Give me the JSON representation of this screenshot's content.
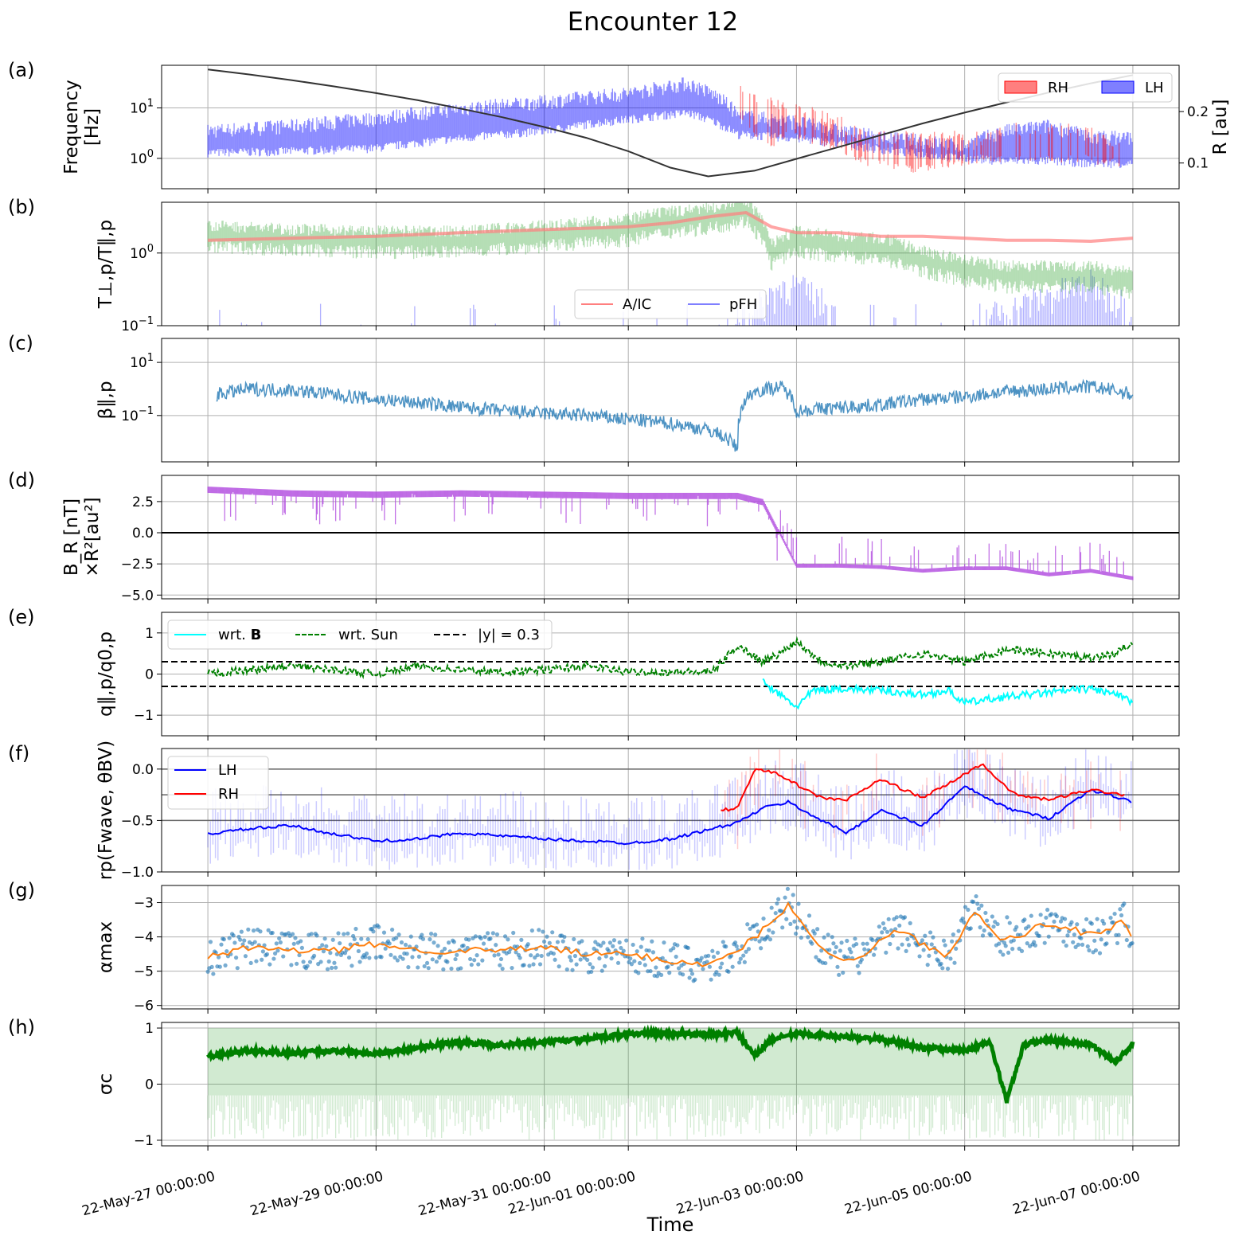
{
  "title": "Encounter 12",
  "x_axis": {
    "label": "Time",
    "tick_labels": [
      "22-May-27 00:00:00",
      "22-May-29 00:00:00",
      "22-May-31 00:00:00",
      "22-Jun-01 00:00:00",
      "22-Jun-03 00:00:00",
      "22-Jun-05 00:00:00",
      "22-Jun-07 00:00:00"
    ],
    "tick_days": [
      0,
      2,
      4,
      5,
      7,
      9,
      11
    ],
    "range_days": [
      -0.55,
      11.55
    ]
  },
  "colors": {
    "rh": "#ff0000",
    "lh": "#0000ff",
    "aic": "#ff7f7f",
    "pfh": "#7f7fff",
    "beta": "#1f77b4",
    "br": "#b34fe0",
    "cyan": "#00ffff",
    "green": "#008000",
    "orange": "#ff7f0e"
  },
  "panels": [
    {
      "letter": "(a)",
      "ylabel": [
        "Frequency",
        "[Hz]"
      ],
      "yscale": "log",
      "ylim": [
        0.25,
        70
      ],
      "yticks": [
        {
          "v": 1,
          "label": "10^0"
        },
        {
          "v": 10,
          "label": "10^1"
        }
      ],
      "right_ylabel": "R [au]",
      "right_ylim": [
        0.05,
        0.29
      ],
      "right_yticks": [
        {
          "v": 0.1,
          "label": "0.1"
        },
        {
          "v": 0.2,
          "label": "0.2"
        }
      ],
      "legend": [
        "RH",
        "LH"
      ]
    },
    {
      "letter": "(b)",
      "ylabel": [
        "T⊥,p/T∥,p"
      ],
      "yscale": "log",
      "ylim": [
        0.1,
        5
      ],
      "yticks": [
        {
          "v": 0.1,
          "label": "10^-1"
        },
        {
          "v": 1,
          "label": "10^0"
        }
      ],
      "legend": [
        "A/IC",
        "pFH"
      ]
    },
    {
      "letter": "(c)",
      "ylabel": [
        "β∥,p"
      ],
      "yscale": "log",
      "ylim": [
        0.0018,
        80
      ],
      "yticks": [
        {
          "v": 0.1,
          "label": "10^-1"
        },
        {
          "v": 10,
          "label": "10^1"
        }
      ]
    },
    {
      "letter": "(d)",
      "ylabel": [
        "B_R [nT]",
        "×R²[au²]"
      ],
      "yscale": "linear",
      "ylim": [
        -5.3,
        4.6
      ],
      "yticks": [
        {
          "v": 2.5,
          "label": "2.5"
        },
        {
          "v": 0,
          "label": "0.0"
        },
        {
          "v": -2.5,
          "label": "−2.5"
        },
        {
          "v": -5,
          "label": "−5.0"
        }
      ]
    },
    {
      "letter": "(e)",
      "ylabel": [
        "q∥,p/q0,p"
      ],
      "yscale": "linear",
      "ylim": [
        -1.5,
        1.5
      ],
      "yticks": [
        {
          "v": 1,
          "label": "1"
        },
        {
          "v": 0,
          "label": "0"
        },
        {
          "v": -1,
          "label": "−1"
        }
      ],
      "legend": [
        "wrt. B",
        "wrt. Sun",
        "|y| = 0.3"
      ]
    },
    {
      "letter": "(f)",
      "ylabel": [
        "rp(Fwave, θBV)"
      ],
      "yscale": "linear",
      "ylim": [
        -1.0,
        0.2
      ],
      "yticks": [
        {
          "v": 0,
          "label": "0.0"
        },
        {
          "v": -0.5,
          "label": "−0.5"
        },
        {
          "v": -1,
          "label": "−1.0"
        }
      ],
      "legend": [
        "LH",
        "RH"
      ]
    },
    {
      "letter": "(g)",
      "ylabel": [
        "αmax"
      ],
      "yscale": "linear",
      "ylim": [
        -6.1,
        -2.5
      ],
      "yticks": [
        {
          "v": -3,
          "label": "−3"
        },
        {
          "v": -4,
          "label": "−4"
        },
        {
          "v": -5,
          "label": "−5"
        },
        {
          "v": -6,
          "label": "−6"
        }
      ]
    },
    {
      "letter": "(h)",
      "ylabel": [
        "σc"
      ],
      "yscale": "linear",
      "ylim": [
        -1.1,
        1.1
      ],
      "yticks": [
        {
          "v": 1,
          "label": "1"
        },
        {
          "v": 0,
          "label": "0"
        },
        {
          "v": -1,
          "label": "−1"
        }
      ]
    }
  ],
  "chart_data": [
    {
      "type": "line",
      "panel": "(a)",
      "series": [
        {
          "name": "R [au]",
          "axis": "right",
          "x": [
            0,
            0.5,
            1,
            1.5,
            2,
            2.5,
            3,
            3.5,
            4,
            4.5,
            5,
            5.5,
            5.95,
            6.5,
            7,
            7.5,
            8,
            8.5,
            9,
            9.5,
            10,
            10.5,
            11
          ],
          "y": [
            0.282,
            0.272,
            0.261,
            0.249,
            0.236,
            0.222,
            0.206,
            0.189,
            0.17,
            0.149,
            0.123,
            0.091,
            0.074,
            0.085,
            0.108,
            0.131,
            0.154,
            0.177,
            0.198,
            0.218,
            0.237,
            0.255,
            0.271
          ]
        },
        {
          "name": "LH",
          "kind": "band",
          "x": [
            0,
            1,
            2,
            3,
            4,
            5,
            5.7,
            6.3,
            7,
            7.5,
            8,
            8.5,
            9,
            9.5,
            10,
            10.5,
            11
          ],
          "low": [
            1.3,
            1.4,
            1.6,
            2.5,
            3.5,
            6,
            8,
            3,
            2.5,
            2,
            1.5,
            1.2,
            1.0,
            0.9,
            0.9,
            0.8,
            0.8
          ],
          "high": [
            4,
            5,
            7,
            11,
            15,
            22,
            35,
            8,
            6,
            4,
            3,
            2.5,
            2,
            4,
            5,
            3,
            3
          ]
        },
        {
          "name": "RH",
          "kind": "band",
          "x": [
            6.3,
            6.6,
            6.9,
            7.8,
            8.4,
            9.2,
            9.8,
            10.4,
            10.9
          ],
          "low": [
            6,
            1.5,
            3,
            0.9,
            0.6,
            1.0,
            0.9,
            1.0,
            0.8
          ],
          "high": [
            25,
            15,
            12,
            3,
            3,
            3,
            5,
            4,
            2
          ]
        }
      ]
    },
    {
      "type": "line",
      "panel": "(b)",
      "series": [
        {
          "name": "A/IC",
          "x": [
            0,
            1,
            2,
            3,
            4,
            5,
            5.5,
            6,
            6.4,
            6.7,
            7,
            7.5,
            8,
            8.5,
            9,
            9.5,
            10,
            10.5,
            11
          ],
          "y": [
            1.5,
            1.6,
            1.7,
            1.9,
            2.1,
            2.3,
            2.6,
            3.2,
            3.6,
            2.3,
            1.9,
            1.9,
            1.7,
            1.7,
            1.6,
            1.5,
            1.5,
            1.45,
            1.6
          ]
        },
        {
          "name": "pFH",
          "x": [
            0,
            1,
            2,
            3,
            4,
            5,
            6,
            6.5,
            6.9,
            7.5,
            8,
            8.5,
            9,
            9.5,
            10,
            10.5,
            11
          ],
          "y": [
            0.1,
            0.1,
            0.1,
            0.1,
            0.1,
            0.1,
            0.1,
            0.12,
            0.3,
            0.1,
            0.1,
            0.1,
            0.1,
            0.12,
            0.2,
            0.3,
            0.12
          ]
        },
        {
          "name": "",
          "x": [
            0,
            1,
            2,
            3,
            4,
            5,
            5.5,
            6,
            6.4,
            6.7,
            7,
            7.5,
            8,
            8.5,
            9,
            9.5,
            10,
            10.5,
            11
          ],
          "y": [
            1.8,
            1.6,
            1.5,
            1.5,
            1.8,
            2.2,
            2.8,
            3.2,
            4,
            1.0,
            1.5,
            1.3,
            1.2,
            0.8,
            0.6,
            0.5,
            0.5,
            0.5,
            0.4
          ]
        }
      ]
    },
    {
      "type": "line",
      "panel": "(c)",
      "series": [
        {
          "name": "",
          "x": [
            0.1,
            0.5,
            1,
            1.5,
            2,
            2.5,
            3,
            3.5,
            4,
            4.5,
            5,
            5.5,
            6,
            6.3,
            6.5,
            6.8,
            7,
            7.5,
            8,
            8.5,
            9,
            9.5,
            10,
            10.5,
            11
          ],
          "y": [
            0.6,
            1.0,
            0.9,
            0.6,
            0.4,
            0.3,
            0.2,
            0.15,
            0.12,
            0.1,
            0.07,
            0.05,
            0.025,
            0.005,
            0.8,
            1.2,
            0.15,
            0.2,
            0.25,
            0.4,
            0.5,
            0.8,
            1.0,
            1.2,
            0.6
          ]
        }
      ]
    },
    {
      "type": "line",
      "panel": "(d)",
      "series": [
        {
          "name": "",
          "x": [
            0,
            1,
            2,
            3,
            4,
            5,
            6,
            6.3,
            6.6,
            7,
            7.5,
            8,
            8.5,
            9,
            9.5,
            10,
            10.5,
            11
          ],
          "y": [
            3.5,
            3.2,
            3.1,
            3.2,
            3.1,
            3.0,
            3.0,
            3.0,
            2.5,
            -2.8,
            -2.8,
            -2.9,
            -3.2,
            -3.0,
            -3.0,
            -3.5,
            -3.2,
            -3.8
          ]
        }
      ]
    },
    {
      "type": "line",
      "panel": "(e)",
      "series": [
        {
          "name": "wrt. B",
          "x": [
            6.6,
            6.8,
            7,
            7.2,
            7.5,
            8,
            8.5,
            8.8,
            9,
            9.5,
            10,
            10.5,
            10.8,
            11
          ],
          "y": [
            -0.2,
            -0.5,
            -0.8,
            -0.4,
            -0.35,
            -0.4,
            -0.5,
            -0.4,
            -0.7,
            -0.55,
            -0.45,
            -0.35,
            -0.5,
            -0.7
          ]
        },
        {
          "name": "wrt. Sun",
          "x": [
            0,
            0.5,
            1,
            1.5,
            2,
            2.5,
            3,
            3.5,
            4,
            4.5,
            5,
            5.5,
            6,
            6.3,
            6.6,
            6.8,
            7,
            7.3,
            7.6,
            8,
            8.5,
            9,
            9.5,
            10,
            10.5,
            10.8,
            11
          ],
          "y": [
            0,
            0.1,
            0.2,
            0.1,
            0,
            0.2,
            0.1,
            0.05,
            0.1,
            0.2,
            0.05,
            0.05,
            0.05,
            0.7,
            0.3,
            0.5,
            0.8,
            0.3,
            0.2,
            0.3,
            0.5,
            0.3,
            0.6,
            0.5,
            0.4,
            0.5,
            0.8
          ]
        },
        {
          "name": "|y| = 0.3",
          "x": [
            -0.55,
            11.55
          ],
          "y": [
            0.3,
            0.3
          ]
        },
        {
          "name": "",
          "x": [
            -0.55,
            11.55
          ],
          "y": [
            -0.3,
            -0.3
          ]
        }
      ]
    },
    {
      "type": "line",
      "panel": "(f)",
      "series": [
        {
          "name": "LH",
          "x": [
            0,
            0.5,
            1,
            1.5,
            2,
            2.5,
            3,
            3.5,
            4,
            4.5,
            5,
            5.5,
            6,
            6.3,
            6.6,
            6.9,
            7.3,
            7.6,
            8,
            8.5,
            9,
            9.5,
            10,
            10.5,
            11
          ],
          "y": [
            -0.63,
            -0.58,
            -0.55,
            -0.63,
            -0.7,
            -0.68,
            -0.62,
            -0.65,
            -0.68,
            -0.7,
            -0.72,
            -0.68,
            -0.58,
            -0.52,
            -0.38,
            -0.32,
            -0.5,
            -0.62,
            -0.4,
            -0.55,
            -0.17,
            -0.38,
            -0.48,
            -0.2,
            -0.32
          ]
        },
        {
          "name": "RH",
          "x": [
            6.1,
            6.3,
            6.5,
            6.8,
            7.1,
            7.3,
            7.6,
            8,
            8.5,
            8.9,
            9.2,
            9.6,
            10,
            10.5,
            10.9
          ],
          "y": [
            -0.4,
            -0.38,
            0.0,
            -0.05,
            -0.2,
            -0.28,
            -0.3,
            -0.1,
            -0.28,
            -0.1,
            0.05,
            -0.25,
            -0.3,
            -0.2,
            -0.25
          ]
        },
        {
          "name": "",
          "x": [
            -0.55,
            11.55
          ],
          "y": [
            0,
            0
          ]
        },
        {
          "name": "",
          "x": [
            -0.55,
            11.55
          ],
          "y": [
            -0.25,
            -0.25
          ]
        },
        {
          "name": "",
          "x": [
            -0.55,
            11.55
          ],
          "y": [
            -0.5,
            -0.5
          ]
        }
      ]
    },
    {
      "type": "scatter",
      "panel": "(g)",
      "series": [
        {
          "name": "",
          "x": [
            0,
            0.5,
            1,
            1.5,
            2,
            2.5,
            3,
            3.5,
            4,
            4.5,
            5,
            5.5,
            6,
            6.3,
            6.6,
            6.9,
            7.2,
            7.5,
            7.8,
            8.2,
            8.5,
            8.8,
            9.1,
            9.4,
            9.7,
            10,
            10.3,
            10.6,
            10.9,
            11
          ],
          "y": [
            -4.6,
            -4.3,
            -4.4,
            -4.4,
            -4.2,
            -4.4,
            -4.4,
            -4.4,
            -4.3,
            -4.5,
            -4.5,
            -4.7,
            -4.8,
            -4.4,
            -3.8,
            -3.1,
            -4.0,
            -4.7,
            -4.5,
            -3.8,
            -4.2,
            -4.6,
            -3.2,
            -4.0,
            -3.9,
            -3.6,
            -3.8,
            -4.0,
            -3.5,
            -4.2
          ]
        }
      ]
    },
    {
      "type": "line",
      "panel": "(h)",
      "series": [
        {
          "name": "",
          "x": [
            0,
            0.5,
            1,
            1.5,
            2,
            2.5,
            3,
            3.5,
            4,
            4.5,
            5,
            5.5,
            6,
            6.3,
            6.5,
            6.7,
            7,
            7.5,
            8,
            8.5,
            9,
            9.3,
            9.5,
            9.7,
            10,
            10.5,
            10.8,
            11
          ],
          "y": [
            0.5,
            0.6,
            0.55,
            0.6,
            0.55,
            0.65,
            0.75,
            0.7,
            0.75,
            0.8,
            0.9,
            0.9,
            0.88,
            0.92,
            0.5,
            0.8,
            0.9,
            0.85,
            0.8,
            0.65,
            0.6,
            0.75,
            -0.3,
            0.7,
            0.8,
            0.7,
            0.4,
            0.72
          ]
        },
        {
          "name": "",
          "kind": "band",
          "x": [
            0,
            11
          ],
          "low": [
            -1,
            -1
          ],
          "high": [
            1,
            1
          ]
        }
      ]
    }
  ]
}
